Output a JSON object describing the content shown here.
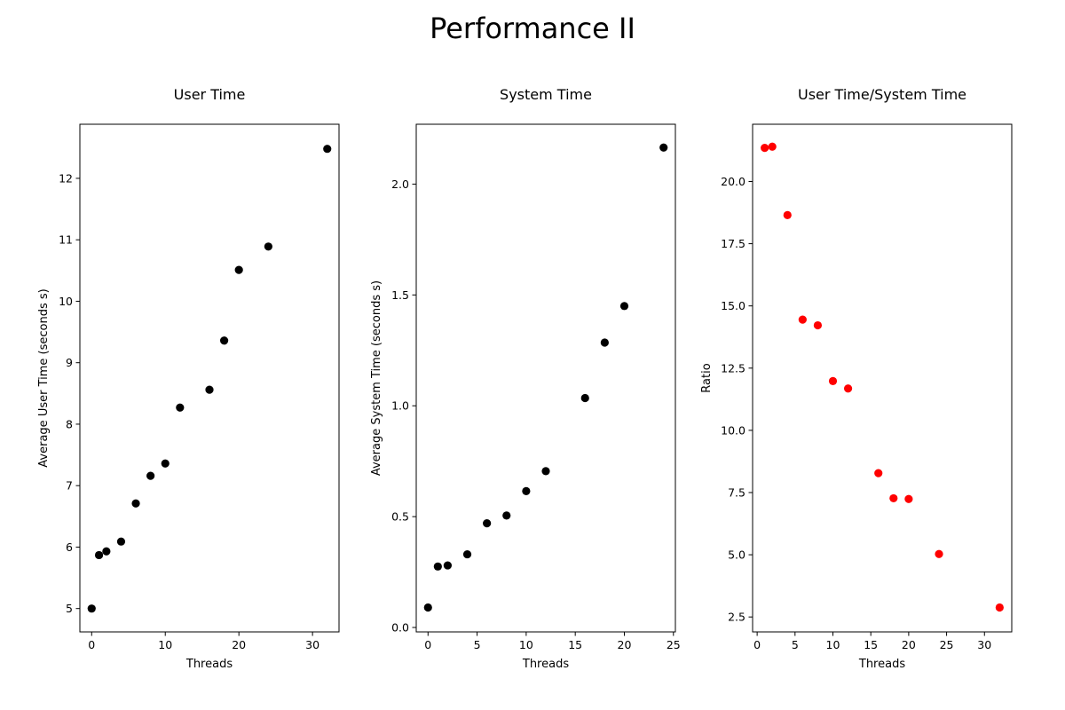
{
  "figure": {
    "title": "Performance II"
  },
  "chart_data": [
    {
      "type": "scatter",
      "title": "User Time",
      "xlabel": "Threads",
      "ylabel": "Average User Time (seconds s)",
      "color": "#000000",
      "xlim": [
        -1.6,
        33.6
      ],
      "ylim": [
        4.62,
        12.88
      ],
      "xticks": [
        0,
        10,
        20,
        30
      ],
      "yticks": [
        5,
        6,
        7,
        8,
        9,
        10,
        11,
        12
      ],
      "x": [
        0,
        1,
        2,
        4,
        6,
        8,
        10,
        12,
        16,
        18,
        20,
        24,
        32
      ],
      "y": [
        5.0,
        5.87,
        5.93,
        6.09,
        6.71,
        7.16,
        7.36,
        8.27,
        8.56,
        9.36,
        10.51,
        10.89,
        12.48
      ]
    },
    {
      "type": "scatter",
      "title": "System Time",
      "xlabel": "Threads",
      "ylabel": "Average System Time (seconds s)",
      "color": "#000000",
      "xlim": [
        -1.2,
        25.2
      ],
      "ylim": [
        -0.02,
        2.27
      ],
      "xticks": [
        0,
        5,
        10,
        15,
        20,
        25
      ],
      "yticks": [
        "0.0",
        "0.5",
        "1.0",
        "1.5",
        "2.0"
      ],
      "x": [
        0,
        1,
        2,
        4,
        6,
        8,
        10,
        12,
        16,
        18,
        20,
        24
      ],
      "y": [
        0.09,
        0.275,
        0.28,
        0.33,
        0.47,
        0.505,
        0.615,
        0.705,
        1.035,
        1.285,
        1.45,
        2.165
      ]
    },
    {
      "type": "scatter",
      "title": "User Time/System Time",
      "xlabel": "Threads",
      "ylabel": "Ratio",
      "color": "#ff0000",
      "xlim": [
        -0.6,
        33.6
      ],
      "ylim": [
        1.9,
        22.3
      ],
      "xticks": [
        0,
        5,
        10,
        15,
        20,
        25,
        30
      ],
      "yticks": [
        "2.5",
        "5.0",
        "7.5",
        "10.0",
        "12.5",
        "15.0",
        "17.5",
        "20.0"
      ],
      "x": [
        1,
        2,
        4,
        6,
        8,
        10,
        12,
        16,
        18,
        20,
        24,
        32
      ],
      "y": [
        21.35,
        21.4,
        18.65,
        14.45,
        14.22,
        11.98,
        11.68,
        8.28,
        7.27,
        7.24,
        5.03,
        2.88
      ]
    }
  ]
}
